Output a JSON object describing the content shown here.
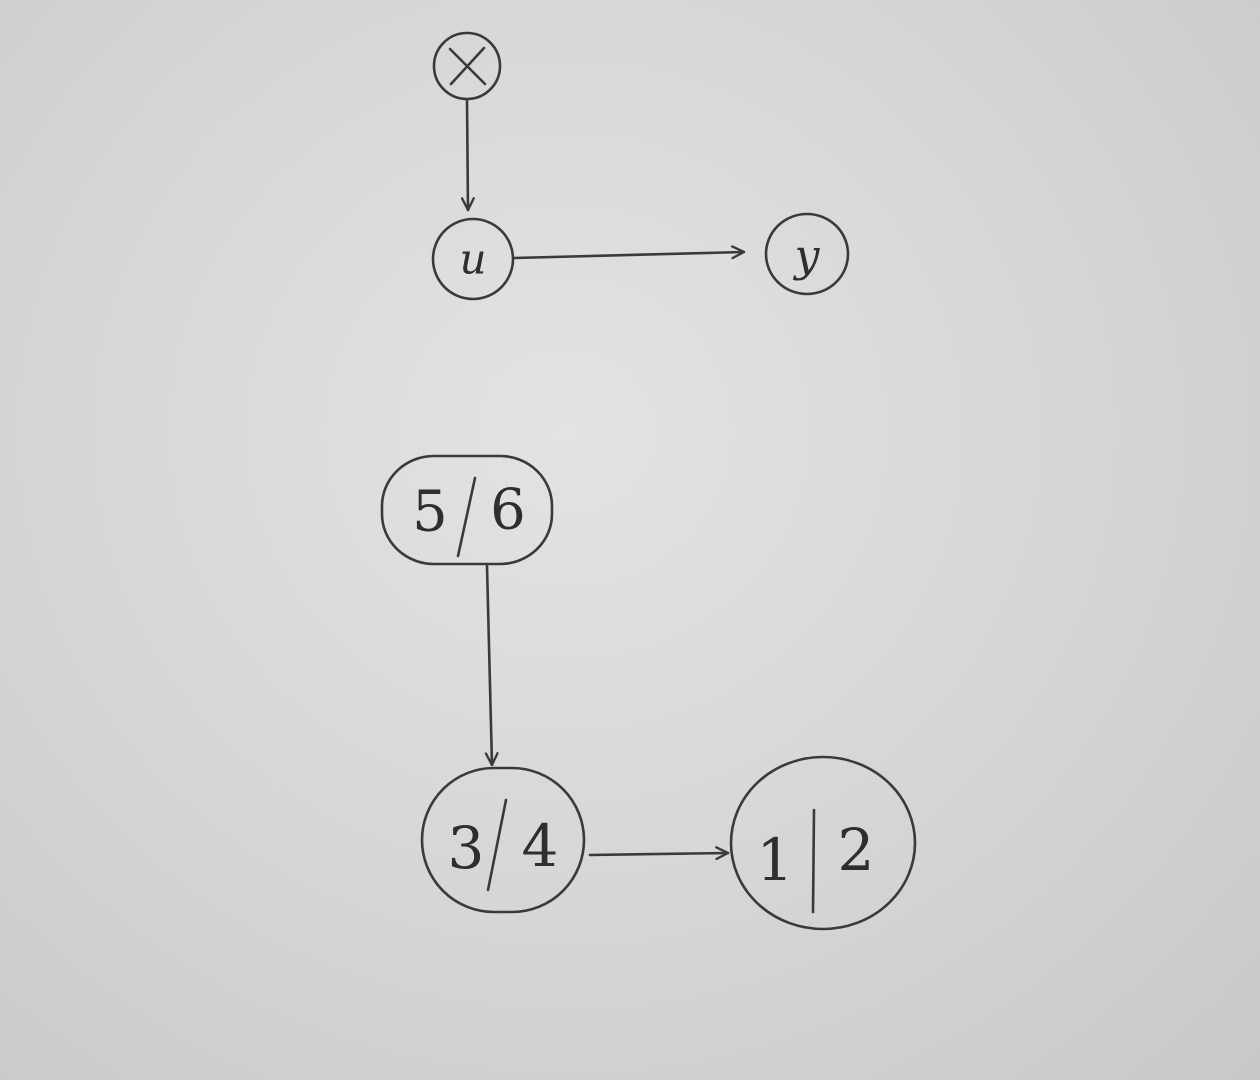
{
  "diagrams": {
    "variables": {
      "nodes": [
        {
          "id": "x",
          "label": "x",
          "marker": "crossed-circle"
        },
        {
          "id": "u",
          "label": "u"
        },
        {
          "id": "y",
          "label": "y"
        }
      ],
      "edges": [
        {
          "from": "x",
          "to": "u"
        },
        {
          "from": "u",
          "to": "y"
        }
      ]
    },
    "blocks": {
      "nodes": [
        {
          "id": "b56",
          "left": "5",
          "right": "6"
        },
        {
          "id": "b34",
          "left": "3",
          "right": "4"
        },
        {
          "id": "b12",
          "left": "1",
          "right": "2"
        }
      ],
      "edges": [
        {
          "from": "b56",
          "to": "b34"
        },
        {
          "from": "b34",
          "to": "b12"
        }
      ]
    }
  }
}
